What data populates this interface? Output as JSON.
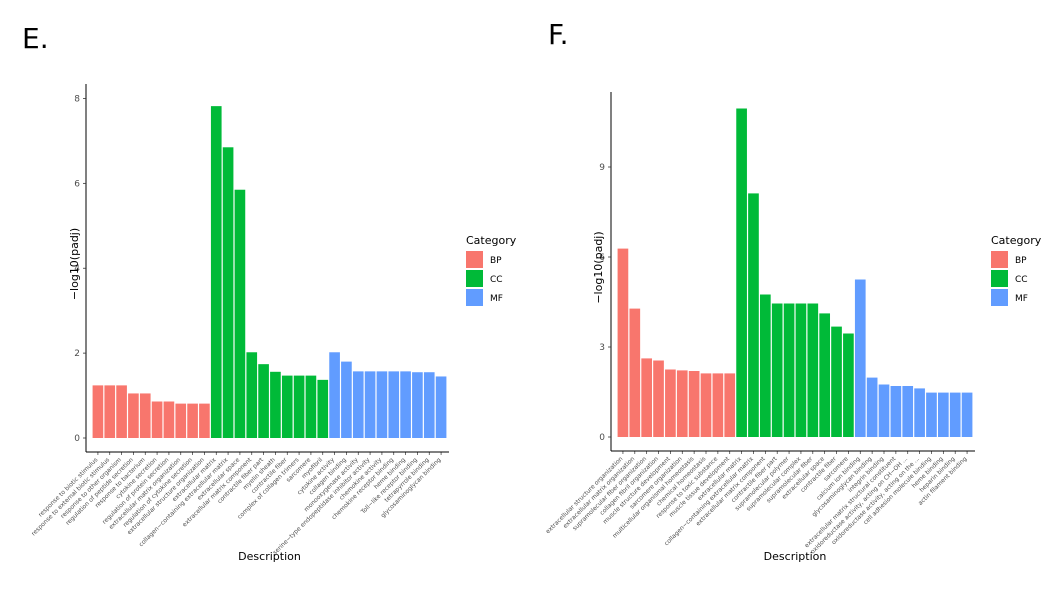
{
  "panels": {
    "e_label": "E.",
    "f_label": "F."
  },
  "colors": {
    "BP": "#F8766D",
    "CC": "#00BA38",
    "MF": "#619CFF"
  },
  "chart_data": [
    {
      "type": "bar",
      "panel": "E.",
      "xlabel": "Description",
      "ylabel": "−log10(padj)",
      "ylim": [
        0,
        8.2
      ],
      "yticks": [
        0,
        2,
        4,
        6,
        8
      ],
      "legend_title": "Category",
      "legend": [
        "BP",
        "CC",
        "MF"
      ],
      "legend_position": "right",
      "bars": [
        {
          "label": "response to biotic stimulus",
          "value": 1.24,
          "category": "BP"
        },
        {
          "label": "response to external biotic stimulus",
          "value": 1.24,
          "category": "BP"
        },
        {
          "label": "response to other organism",
          "value": 1.24,
          "category": "BP"
        },
        {
          "label": "regulation of peptide secretion",
          "value": 1.05,
          "category": "BP"
        },
        {
          "label": "response to bacterium",
          "value": 1.05,
          "category": "BP"
        },
        {
          "label": "cytokine secretion",
          "value": 0.86,
          "category": "BP"
        },
        {
          "label": "regulation of protein secretion",
          "value": 0.86,
          "category": "BP"
        },
        {
          "label": "extracellular matrix organization",
          "value": 0.81,
          "category": "BP"
        },
        {
          "label": "regulation of cytokine secretion",
          "value": 0.81,
          "category": "BP"
        },
        {
          "label": "extracellular structure organization",
          "value": 0.81,
          "category": "BP"
        },
        {
          "label": "extracellular matrix",
          "value": 7.82,
          "category": "CC"
        },
        {
          "label": "collagen−containing extracellular matrix",
          "value": 6.85,
          "category": "CC"
        },
        {
          "label": "extracellular space",
          "value": 5.85,
          "category": "CC"
        },
        {
          "label": "extracellular matrix component",
          "value": 2.02,
          "category": "CC"
        },
        {
          "label": "contractile fiber part",
          "value": 1.74,
          "category": "CC"
        },
        {
          "label": "myelin sheath",
          "value": 1.56,
          "category": "CC"
        },
        {
          "label": "contractile fiber",
          "value": 1.47,
          "category": "CC"
        },
        {
          "label": "complex of collagen trimers",
          "value": 1.47,
          "category": "CC"
        },
        {
          "label": "sarcomere",
          "value": 1.47,
          "category": "CC"
        },
        {
          "label": "myofibril",
          "value": 1.37,
          "category": "CC"
        },
        {
          "label": "cytokine activity",
          "value": 2.02,
          "category": "MF"
        },
        {
          "label": "collagen binding",
          "value": 1.8,
          "category": "MF"
        },
        {
          "label": "monooxygenase activity",
          "value": 1.57,
          "category": "MF"
        },
        {
          "label": "serine−type endopeptidase inhibitor activity",
          "value": 1.57,
          "category": "MF"
        },
        {
          "label": "chemokine activity",
          "value": 1.57,
          "category": "MF"
        },
        {
          "label": "chemokine receptor binding",
          "value": 1.57,
          "category": "MF"
        },
        {
          "label": "heme binding",
          "value": 1.57,
          "category": "MF"
        },
        {
          "label": "Toll−like receptor binding",
          "value": 1.55,
          "category": "MF"
        },
        {
          "label": "tetrapyrrole binding",
          "value": 1.55,
          "category": "MF"
        },
        {
          "label": "glycosaminoglycan binding",
          "value": 1.45,
          "category": "MF"
        }
      ]
    },
    {
      "type": "bar",
      "panel": "F.",
      "xlabel": "Description",
      "ylabel": "−log10(padj)",
      "ylim": [
        0,
        11.3
      ],
      "yticks": [
        0,
        3,
        6,
        9
      ],
      "legend_title": "Category",
      "legend": [
        "BP",
        "CC",
        "MF"
      ],
      "legend_position": "right",
      "bars": [
        {
          "label": "extracellular structure organization",
          "value": 6.28,
          "category": "BP"
        },
        {
          "label": "extracellular matrix organization",
          "value": 4.28,
          "category": "BP"
        },
        {
          "label": "supramolecular fiber organization",
          "value": 2.62,
          "category": "BP"
        },
        {
          "label": "collagen fibril organization",
          "value": 2.55,
          "category": "BP"
        },
        {
          "label": "muscle structure development",
          "value": 2.25,
          "category": "BP"
        },
        {
          "label": "sarcomere organization",
          "value": 2.22,
          "category": "BP"
        },
        {
          "label": "multicellular organismal homeostasis",
          "value": 2.2,
          "category": "BP"
        },
        {
          "label": "chemical homeostasis",
          "value": 2.12,
          "category": "BP"
        },
        {
          "label": "response to toxic substance",
          "value": 2.12,
          "category": "BP"
        },
        {
          "label": "muscle tissue development",
          "value": 2.12,
          "category": "BP"
        },
        {
          "label": "extracellular matrix",
          "value": 10.95,
          "category": "CC"
        },
        {
          "label": "collagen−containing extracellular matrix",
          "value": 8.12,
          "category": "CC"
        },
        {
          "label": "extracellular matrix component",
          "value": 4.75,
          "category": "CC"
        },
        {
          "label": "contractile fiber part",
          "value": 4.45,
          "category": "CC"
        },
        {
          "label": "supramolecular polymer",
          "value": 4.45,
          "category": "CC"
        },
        {
          "label": "supramolecular complex",
          "value": 4.45,
          "category": "CC"
        },
        {
          "label": "supramolecular fiber",
          "value": 4.45,
          "category": "CC"
        },
        {
          "label": "extracellular space",
          "value": 4.12,
          "category": "CC"
        },
        {
          "label": "contractile fiber",
          "value": 3.68,
          "category": "CC"
        },
        {
          "label": "sarcomere",
          "value": 3.45,
          "category": "CC"
        },
        {
          "label": "calcium ion binding",
          "value": 5.25,
          "category": "MF"
        },
        {
          "label": "glycosaminoglycan binding",
          "value": 1.98,
          "category": "MF"
        },
        {
          "label": "integrin binding",
          "value": 1.75,
          "category": "MF"
        },
        {
          "label": "extracellular matrix structural constituent",
          "value": 1.7,
          "category": "MF"
        },
        {
          "label": "oxidoreductase activity, acting on CH−OH ...",
          "value": 1.7,
          "category": "MF"
        },
        {
          "label": "oxidoreductase activity, acting on the ...",
          "value": 1.62,
          "category": "MF"
        },
        {
          "label": "cell adhesion molecule binding",
          "value": 1.48,
          "category": "MF"
        },
        {
          "label": "heme binding",
          "value": 1.48,
          "category": "MF"
        },
        {
          "label": "heparin binding",
          "value": 1.48,
          "category": "MF"
        },
        {
          "label": "actin filament binding",
          "value": 1.48,
          "category": "MF"
        }
      ]
    }
  ]
}
